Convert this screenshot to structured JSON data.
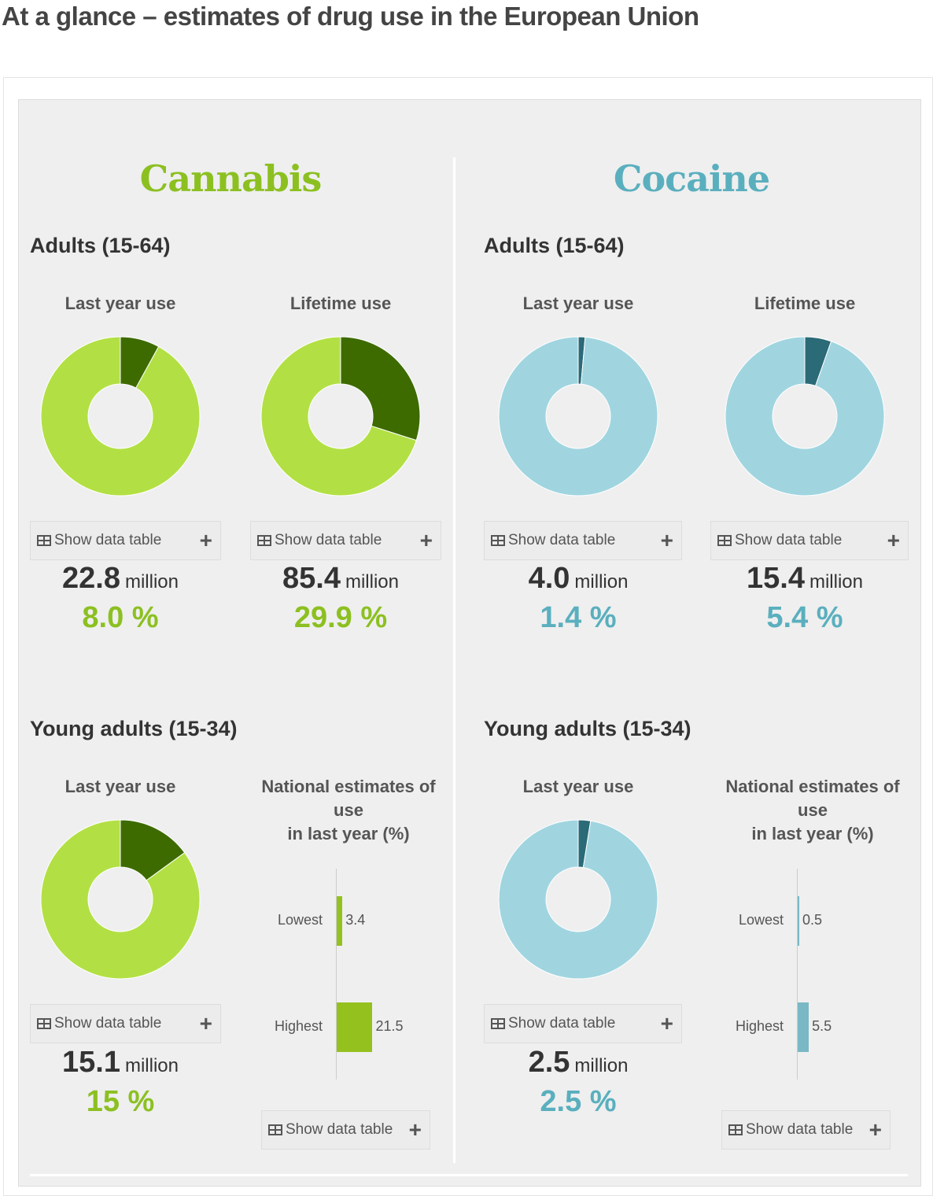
{
  "title": "At a glance – estimates of drug use in the European Union",
  "colors": {
    "cannabis_light": "#b2e044",
    "cannabis_dark": "#3d6b00",
    "cannabis_text": "#8cc021",
    "cannabis_bar": "#95c11f",
    "cocaine_light": "#a0d5e0",
    "cocaine_dark": "#2b6a77",
    "cocaine_text": "#5aafbe",
    "cocaine_bar": "#7ab8c6"
  },
  "show_table": "Show data table",
  "drugs": [
    {
      "name": "Cannabis",
      "adults": "Adults (15-64)",
      "young": "Young adults (15-34)",
      "last_year": {
        "label": "Last year use",
        "number": "22.8",
        "unit": "million",
        "percent": "8.0 %"
      },
      "lifetime": {
        "label": "Lifetime use",
        "number": "85.4",
        "unit": "million",
        "percent": "29.9 %"
      },
      "young_last_year": {
        "label": "Last year use",
        "number": "15.1",
        "unit": "million",
        "percent": "15 %"
      },
      "national": {
        "l1": "National estimates of",
        "l2": "use",
        "l3": "in last year (%)",
        "categories": [
          "Lowest",
          "Highest"
        ],
        "values": [
          "3.4",
          "21.5"
        ]
      }
    },
    {
      "name": "Cocaine",
      "adults": "Adults (15-64)",
      "young": "Young adults (15-34)",
      "last_year": {
        "label": "Last year use",
        "number": "4.0",
        "unit": "million",
        "percent": "1.4 %"
      },
      "lifetime": {
        "label": "Lifetime use",
        "number": "15.4",
        "unit": "million",
        "percent": "5.4 %"
      },
      "young_last_year": {
        "label": "Last year use",
        "number": "2.5",
        "unit": "million",
        "percent": "2.5 %"
      },
      "national": {
        "l1": "National estimates of",
        "l2": "use",
        "l3": "in last year (%)",
        "categories": [
          "Lowest",
          "Highest"
        ],
        "values": [
          "0.5",
          "5.5"
        ]
      }
    }
  ],
  "chart_data": [
    {
      "type": "pie",
      "values": [
        8.0,
        92.0
      ]
    },
    {
      "type": "pie",
      "values": [
        29.9,
        70.1
      ]
    },
    {
      "type": "pie",
      "values": [
        15,
        85
      ]
    },
    {
      "type": "bar",
      "orientation": "horizontal",
      "categories": [
        "Lowest",
        "Highest"
      ],
      "values": [
        3.4,
        21.5
      ],
      "xlim": [
        0,
        26
      ]
    },
    {
      "type": "pie",
      "values": [
        1.4,
        98.6
      ]
    },
    {
      "type": "pie",
      "values": [
        5.4,
        94.6
      ]
    },
    {
      "type": "pie",
      "values": [
        2.5,
        97.5
      ]
    },
    {
      "type": "bar",
      "orientation": "horizontal",
      "categories": [
        "Lowest",
        "Highest"
      ],
      "values": [
        0.5,
        5.5
      ],
      "xlim": [
        0,
        21.5
      ]
    }
  ]
}
